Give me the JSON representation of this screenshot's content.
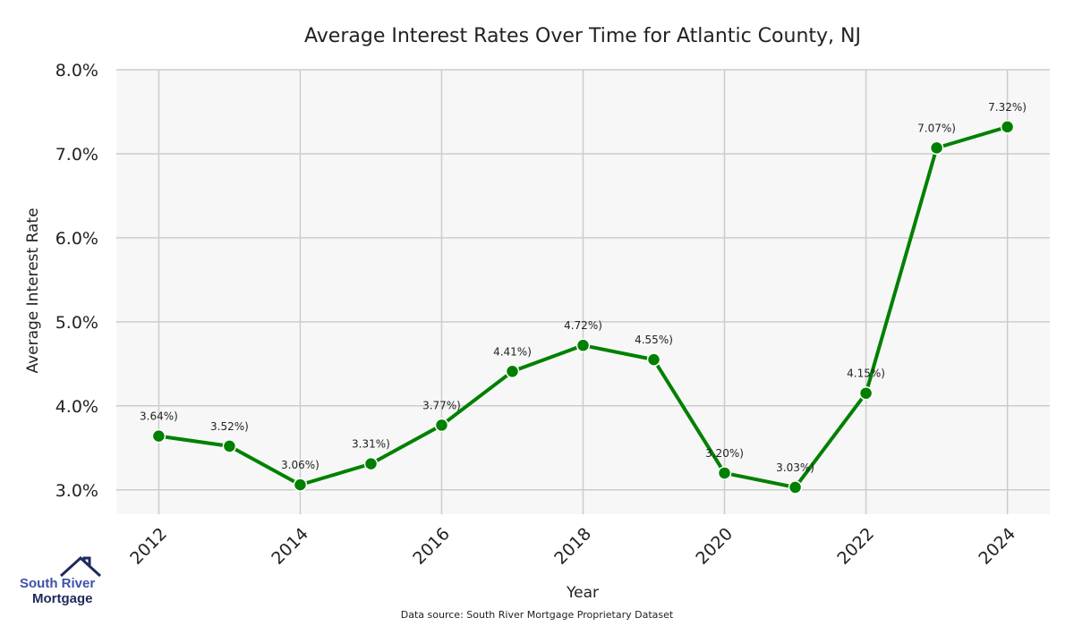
{
  "chart_data": {
    "type": "line",
    "title": "Average Interest Rates Over Time for Atlantic County, NJ",
    "xlabel": "Year",
    "ylabel": "Average Interest Rate",
    "x": [
      2012,
      2013,
      2014,
      2015,
      2016,
      2017,
      2018,
      2019,
      2020,
      2021,
      2022,
      2023,
      2024
    ],
    "values": [
      3.64,
      3.52,
      3.06,
      3.31,
      3.77,
      4.41,
      4.72,
      4.55,
      3.2,
      3.03,
      4.15,
      7.07,
      7.32
    ],
    "data_labels": [
      "3.64%)",
      "3.52%)",
      "3.06%)",
      "3.31%)",
      "3.77%)",
      "4.41%)",
      "4.72%)",
      "4.55%)",
      "3.20%)",
      "3.03%)",
      "4.15%)",
      "7.07%)",
      "7.32%)"
    ],
    "xticks": [
      "2012",
      "2014",
      "2016",
      "2018",
      "2020",
      "2022",
      "2024"
    ],
    "yticks": [
      "3.0%",
      "4.0%",
      "5.0%",
      "6.0%",
      "7.0%",
      "8.0%"
    ],
    "ylim": [
      2.71,
      8.0
    ],
    "xlim": [
      2011.4,
      2024.6
    ],
    "grid": true,
    "line_color": "#008000",
    "background_color": "#f7f7f7"
  },
  "logo": {
    "line1": "South River",
    "line2": "Mortgage"
  },
  "source": "Data source: South River Mortgage Proprietary Dataset"
}
